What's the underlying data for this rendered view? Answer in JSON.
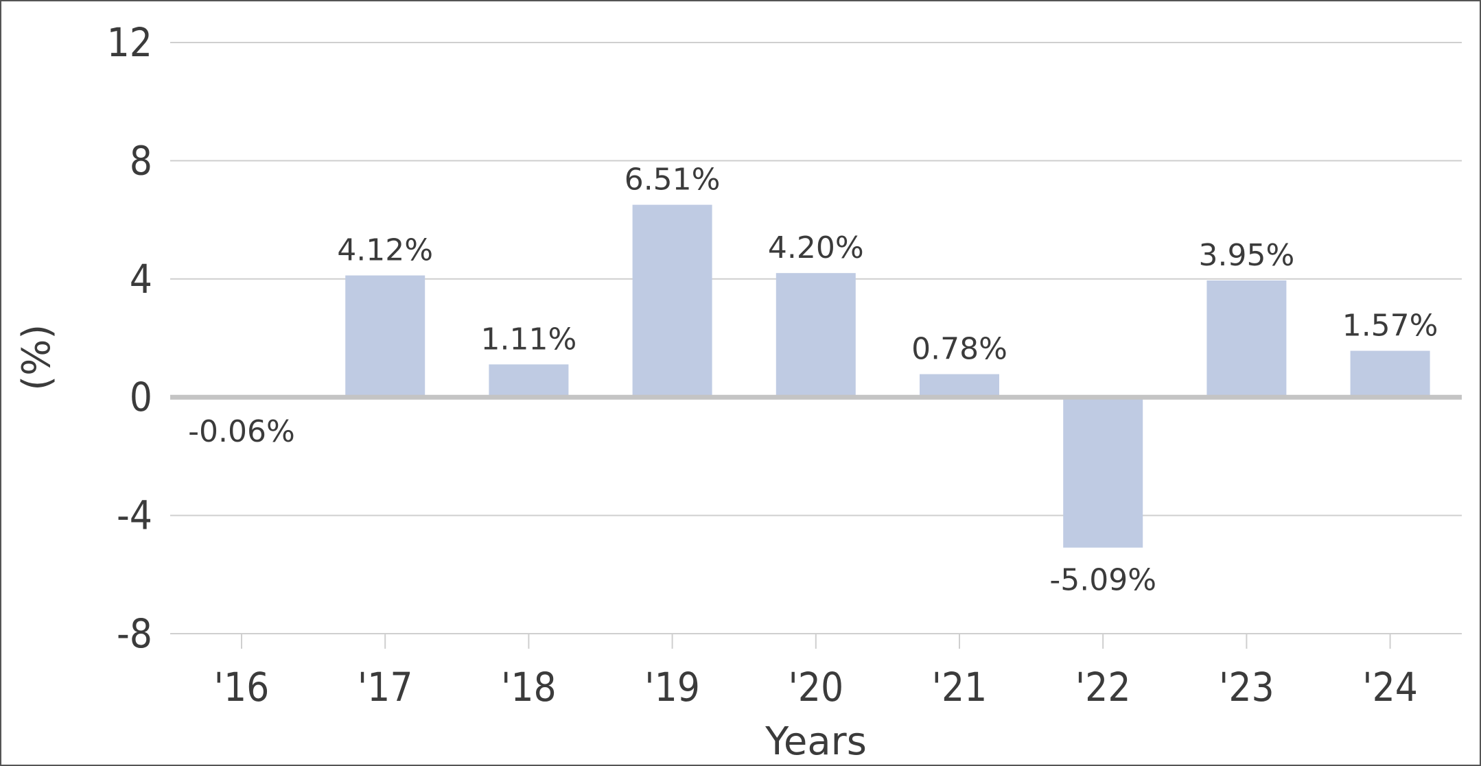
{
  "chart_data": {
    "type": "bar",
    "categories": [
      "'16",
      "'17",
      "'18",
      "'19",
      "'20",
      "'21",
      "'22",
      "'23",
      "'24"
    ],
    "values": [
      -0.06,
      4.12,
      1.11,
      6.51,
      4.2,
      0.78,
      -5.09,
      3.95,
      1.57
    ],
    "data_labels": [
      "-0.06%",
      "4.12%",
      "1.11%",
      "6.51%",
      "4.20%",
      "0.78%",
      "-5.09%",
      "3.95%",
      "1.57%"
    ],
    "xlabel": "Years",
    "ylabel": "(%)",
    "ylim": [
      -8,
      12
    ],
    "yticks": [
      12,
      8,
      4,
      0,
      -4,
      -8
    ],
    "ytick_labels": [
      "12",
      "8",
      "4",
      "0",
      "-4",
      "-8"
    ],
    "grid": true,
    "legend": "none",
    "colors": {
      "bar": "#bfcbe3",
      "grid": "#cfcfcf",
      "zero_line": "#c4c4c4",
      "text": "#3b3b3b",
      "frame": "#555555"
    }
  }
}
